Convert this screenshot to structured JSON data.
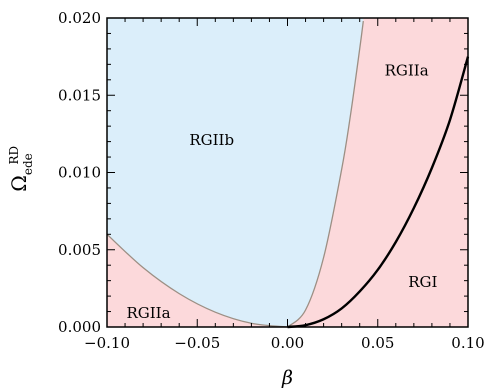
{
  "chart_data": {
    "type": "area",
    "title": "",
    "xlabel": "β",
    "ylabel": {
      "main": "Ω",
      "sup": "RD",
      "sub": "ede"
    },
    "xlim": [
      -0.1,
      0.1
    ],
    "ylim": [
      0,
      0.02
    ],
    "x_ticks": [
      "−0.10",
      "−0.05",
      "0.00",
      "0.05",
      "0.10"
    ],
    "x_tick_values": [
      -0.1,
      -0.05,
      0.0,
      0.05,
      0.1
    ],
    "y_ticks": [
      "0.000",
      "0.005",
      "0.010",
      "0.015",
      "0.020"
    ],
    "y_tick_values": [
      0,
      0.005,
      0.01,
      0.015,
      0.02
    ],
    "grid": false,
    "colors": {
      "RGIIb": "#dbeefa",
      "RGIIa": "#fcd9db",
      "RGI": "#fcd9db",
      "boundary": "#9c8f84",
      "curve": "#000000"
    },
    "boundary_left": {
      "x": [
        -0.1,
        -0.08,
        -0.06,
        -0.04,
        -0.02,
        0.0
      ],
      "y": [
        0.006,
        0.00384,
        0.00216,
        0.00096,
        0.00024,
        0.0
      ]
    },
    "boundary_right": {
      "x": [
        0.0,
        0.01,
        0.02,
        0.03,
        0.035,
        0.04,
        0.042
      ],
      "y": [
        0.0,
        0.0011,
        0.0045,
        0.0102,
        0.0138,
        0.018,
        0.0198
      ]
    },
    "series": [
      {
        "x": [
          0.0,
          0.01,
          0.02,
          0.03,
          0.04,
          0.05,
          0.06,
          0.07,
          0.08,
          0.09,
          0.1
        ],
        "y": [
          0.0,
          0.00012,
          0.0005,
          0.0012,
          0.0023,
          0.0037,
          0.0055,
          0.0077,
          0.0103,
          0.0134,
          0.0175
        ]
      }
    ],
    "region_labels": [
      {
        "text": "RGIIb",
        "x": -0.042,
        "y": 0.0121
      },
      {
        "text": "RGIIa",
        "x": 0.066,
        "y": 0.0166
      },
      {
        "text": "RGI",
        "x": 0.075,
        "y": 0.0029
      },
      {
        "text": "RGIIa",
        "x": -0.077,
        "y": 0.0009
      }
    ]
  }
}
